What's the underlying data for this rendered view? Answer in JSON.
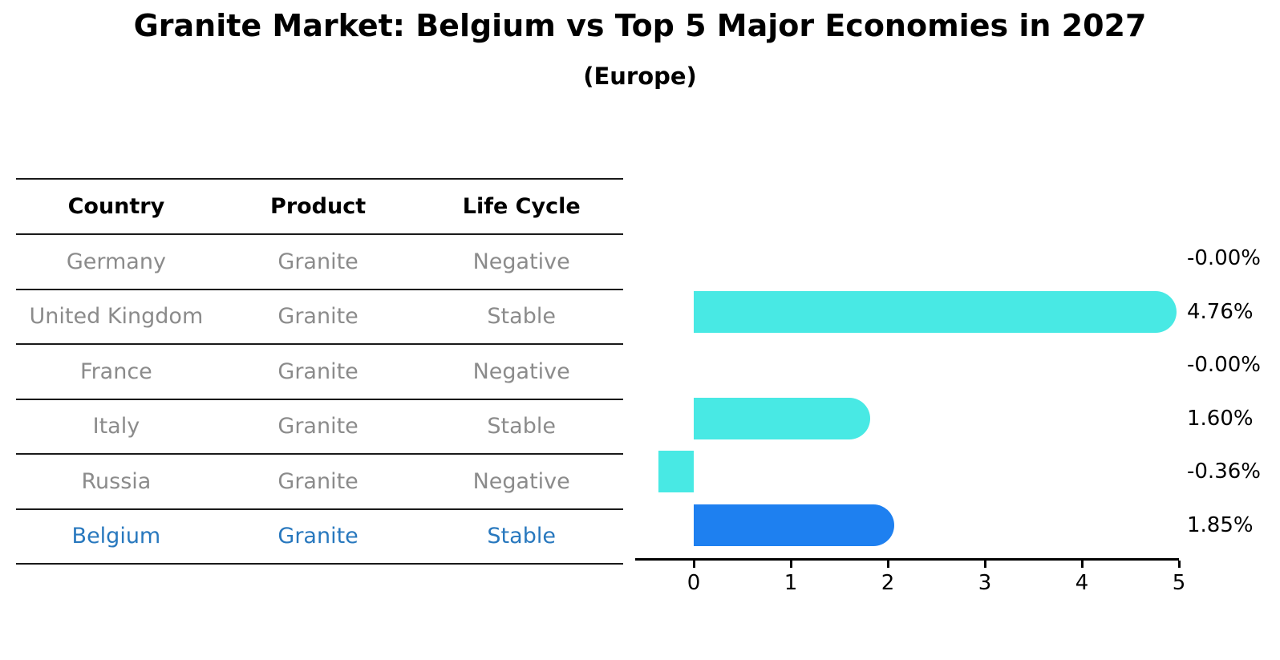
{
  "title": "Granite Market: Belgium vs Top 5 Major Economies in 2027",
  "subtitle": "(Europe)",
  "table": {
    "headers": [
      "Country",
      "Product",
      "Life Cycle"
    ],
    "rows": [
      {
        "country": "Germany",
        "product": "Granite",
        "life_cycle": "Negative",
        "highlight": false
      },
      {
        "country": "United Kingdom",
        "product": "Granite",
        "life_cycle": "Stable",
        "highlight": false
      },
      {
        "country": "France",
        "product": "Granite",
        "life_cycle": "Negative",
        "highlight": false
      },
      {
        "country": "Italy",
        "product": "Granite",
        "life_cycle": "Stable",
        "highlight": false
      },
      {
        "country": "Russia",
        "product": "Granite",
        "life_cycle": "Negative",
        "highlight": false
      },
      {
        "country": "Belgium",
        "product": "Granite",
        "life_cycle": "Stable",
        "highlight": true
      }
    ]
  },
  "chart_data": {
    "type": "bar",
    "orientation": "horizontal",
    "categories": [
      "Germany",
      "United Kingdom",
      "France",
      "Italy",
      "Russia",
      "Belgium"
    ],
    "values": [
      -0.0,
      4.76,
      -0.0,
      1.6,
      -0.36,
      1.85
    ],
    "value_labels": [
      "-0.00%",
      "4.76%",
      "-0.00%",
      "1.60%",
      "-0.36%",
      "1.85%"
    ],
    "xticks": [
      0,
      1,
      2,
      3,
      4,
      5
    ],
    "xlim": [
      -0.6,
      5.0
    ],
    "grid": false,
    "legend": false,
    "bar_color": "#48E9E4",
    "highlight_bar_color": "#1E80F0",
    "highlight_index": 5,
    "highlight_text_color": "#2878BE"
  },
  "colors": {
    "muted_text": "#8B8B8B",
    "table_line": "#1A1A1A",
    "label_text": "#000000"
  }
}
